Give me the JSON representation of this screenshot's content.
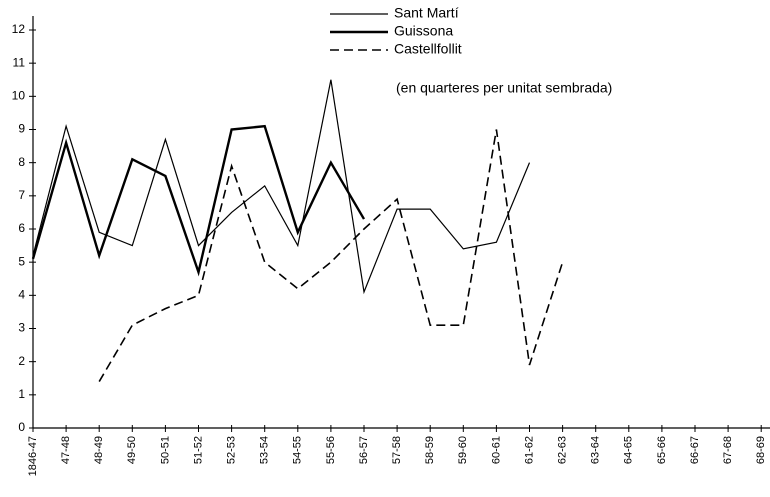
{
  "chart_data": {
    "type": "line",
    "annotation": "(en quarteres per unitat sembrada)",
    "categories": [
      "1846-47",
      "47-48",
      "48-49",
      "49-50",
      "50-51",
      "51-52",
      "52-53",
      "53-54",
      "54-55",
      "55-56",
      "56-57",
      "57-58",
      "58-59",
      "59-60",
      "60-61",
      "61-62",
      "62-63",
      "63-64",
      "64-65",
      "65-66",
      "66-67",
      "67-68",
      "68-69"
    ],
    "series": [
      {
        "name": "Sant Martí",
        "color": "#000000",
        "width": 1.2,
        "dashed": false,
        "values": [
          5.2,
          9.1,
          5.9,
          5.5,
          8.7,
          5.5,
          6.5,
          7.3,
          5.5,
          10.5,
          4.1,
          6.6,
          6.6,
          5.4,
          5.6,
          8.0,
          null,
          null,
          null,
          null,
          null,
          null,
          null
        ]
      },
      {
        "name": "Guissona",
        "color": "#000000",
        "width": 2.4,
        "dashed": false,
        "values": [
          5.1,
          8.6,
          5.2,
          8.1,
          7.6,
          4.7,
          9.0,
          9.1,
          5.9,
          8.0,
          6.3,
          null,
          null,
          null,
          null,
          null,
          null,
          null,
          null,
          null,
          null,
          null,
          null
        ]
      },
      {
        "name": "Castellfollit",
        "color": "#000000",
        "width": 1.6,
        "dashed": true,
        "values": [
          null,
          null,
          1.4,
          3.1,
          3.6,
          4.0,
          7.9,
          5.0,
          4.2,
          5.0,
          6.0,
          6.9,
          3.1,
          3.1,
          9.0,
          1.9,
          5.0,
          null,
          null,
          null,
          null,
          null,
          null
        ]
      }
    ],
    "ylim": [
      0,
      12
    ],
    "yticks": [
      0,
      1,
      2,
      3,
      4,
      5,
      6,
      7,
      8,
      9,
      10,
      11,
      12
    ],
    "grid": false,
    "legend": "top"
  }
}
